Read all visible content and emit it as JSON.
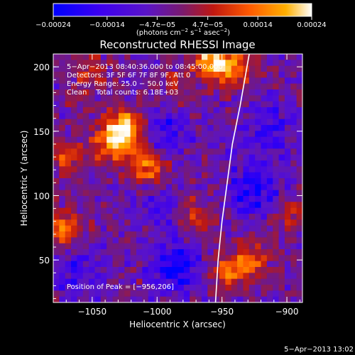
{
  "chart_data": {
    "type": "heatmap",
    "title": "Reconstructed RHESSI Image",
    "xlabel": "Heliocentric X (arcsec)",
    "ylabel": "Heliocentric Y (arcsec)",
    "xlim": [
      -1080,
      -888
    ],
    "ylim": [
      17,
      210
    ],
    "x_ticks": [
      -1050,
      -1000,
      -950,
      -900
    ],
    "x_tick_labels": [
      "−1050",
      "−1000",
      "−950",
      "−900"
    ],
    "y_ticks": [
      50,
      100,
      150,
      200
    ],
    "y_tick_labels": [
      "50",
      "100",
      "150",
      "200"
    ],
    "colorbar": {
      "min": -0.00024,
      "max": 0.00024,
      "tick_values": [
        -0.00024,
        -0.00014,
        -4.7e-05,
        4.7e-05,
        0.00014,
        0.00024
      ],
      "tick_labels": [
        "−0.00024",
        "−0.00014",
        "−4.7e−05",
        "4.7e−05",
        "0.00014",
        "0.00024"
      ],
      "unit_main": "(photons cm",
      "unit_sup1": "−2",
      "unit_mid": " s",
      "unit_sup2": "−1",
      "unit_mid2": " asec",
      "unit_sup3": "−2",
      "unit_end": ")",
      "colormap": [
        "#0000ff",
        "#3c00f0",
        "#5a14c8",
        "#7a1a6e",
        "#c01810",
        "#ff5a00",
        "#ffb000",
        "#ffffff"
      ]
    },
    "annotations": [
      "5−Apr−2013 08:40:36.000 to 08:45:00.000",
      "Detectors: 3F 5F 6F 7F 8F 9F, Att 0",
      "Energy Range: 25.0 − 50.0 keV",
      "Clean    Total counts: 6.18E+03"
    ],
    "peak_label": "Position of Peak = [−956,206]",
    "peak": {
      "x": -956,
      "y": 206
    },
    "limb_curve": [
      {
        "x": -955,
        "y": 17
      },
      {
        "x": -953,
        "y": 50
      },
      {
        "x": -950,
        "y": 80
      },
      {
        "x": -946,
        "y": 110
      },
      {
        "x": -942,
        "y": 140
      },
      {
        "x": -936,
        "y": 170
      },
      {
        "x": -929,
        "y": 210
      }
    ],
    "sources": [
      {
        "x": -1025,
        "y": 152,
        "intensity": 1.0
      },
      {
        "x": -1038,
        "y": 140,
        "intensity": 0.55
      },
      {
        "x": -1012,
        "y": 128,
        "intensity": 0.45
      },
      {
        "x": -1005,
        "y": 118,
        "intensity": 0.35
      },
      {
        "x": -958,
        "y": 205,
        "intensity": 0.85
      },
      {
        "x": -940,
        "y": 198,
        "intensity": 0.55
      },
      {
        "x": -1072,
        "y": 75,
        "intensity": 0.6
      },
      {
        "x": -1070,
        "y": 130,
        "intensity": 0.4
      },
      {
        "x": -945,
        "y": 40,
        "intensity": 0.55
      },
      {
        "x": -925,
        "y": 50,
        "intensity": 0.45
      },
      {
        "x": -972,
        "y": 85,
        "intensity": 0.35
      },
      {
        "x": -985,
        "y": 185,
        "intensity": 0.3
      },
      {
        "x": -1050,
        "y": 195,
        "intensity": 0.35
      },
      {
        "x": -898,
        "y": 85,
        "intensity": 0.4
      }
    ],
    "negative_regions": [
      {
        "x": -985,
        "y": 45,
        "intensity": 0.9
      },
      {
        "x": -925,
        "y": 105,
        "intensity": 0.9
      },
      {
        "x": -995,
        "y": 150,
        "intensity": 0.6
      },
      {
        "x": -1060,
        "y": 40,
        "intensity": 0.55
      },
      {
        "x": -915,
        "y": 150,
        "intensity": 0.6
      },
      {
        "x": -1000,
        "y": 90,
        "intensity": 0.45
      }
    ]
  },
  "footer": {
    "timestamp": "5−Apr−2013 13:02"
  }
}
